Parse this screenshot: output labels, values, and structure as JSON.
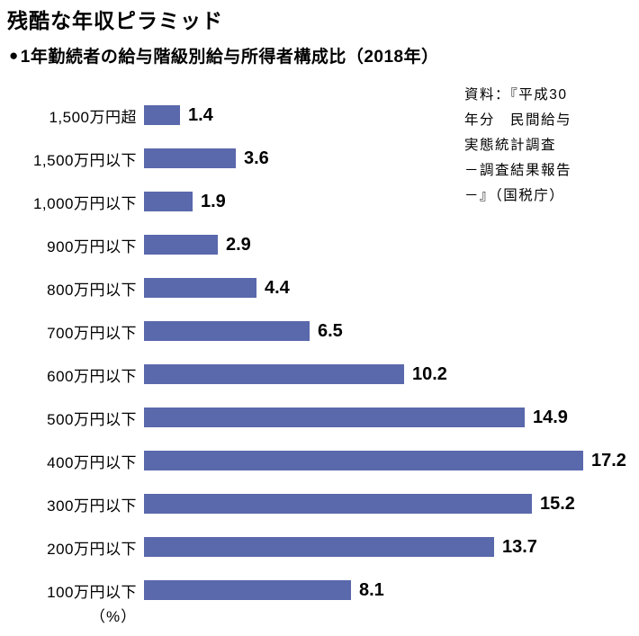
{
  "title": "残酷な年収ピラミッド",
  "subtitle": {
    "bullet": "●",
    "text": "1年勤続者の給与階級別給与所得者構成比（2018年）"
  },
  "source_lines": [
    "資料：『平成30",
    "年分　民間給与",
    "実態統計調査",
    "－調査結果報告",
    "－』（国税庁）"
  ],
  "percent_label": "（%）",
  "colors": {
    "bar": "#5a68ac",
    "text": "#000000",
    "background": "#ffffff"
  },
  "chart_data": {
    "type": "bar",
    "orientation": "horizontal",
    "title": "1年勤続者の給与階級別給与所得者構成比（2018年）",
    "categories": [
      "1,500万円超",
      "1,500万円以下",
      "1,000万円以下",
      "900万円以下",
      "800万円以下",
      "700万円以下",
      "600万円以下",
      "500万円以下",
      "400万円以下",
      "300万円以下",
      "200万円以下",
      "100万円以下"
    ],
    "values": [
      1.4,
      3.6,
      1.9,
      2.9,
      4.4,
      6.5,
      10.2,
      14.9,
      17.2,
      15.2,
      13.7,
      8.1
    ],
    "unit": "%",
    "xlim": [
      0,
      17.2
    ],
    "value_labels": true,
    "grid": false,
    "legend": false
  }
}
